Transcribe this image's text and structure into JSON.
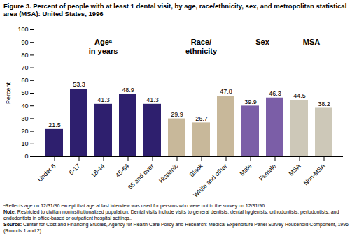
{
  "chart_data": {
    "type": "bar",
    "title": "Figure 3. Percent of people with at least 1 dental visit, by age, race/ethnicity, sex, and metropolitan statistical area (MSA): United States, 1996",
    "ylabel": "Percent",
    "categories": [
      "Under 6",
      "6-17",
      "18-44",
      "45-64",
      "65 and over",
      "Hispanic",
      "Black",
      "White and other",
      "Male",
      "Female",
      "MSA",
      "Non-MSA"
    ],
    "values": [
      21.5,
      53.3,
      41.3,
      48.9,
      41.3,
      29.9,
      26.7,
      47.8,
      39.9,
      46.3,
      44.5,
      38.2
    ],
    "colors": [
      "#2e1f6e",
      "#2e1f6e",
      "#2e1f6e",
      "#2e1f6e",
      "#2e1f6e",
      "#c8b89a",
      "#c8b89a",
      "#c8b89a",
      "#7b5ea7",
      "#7b5ea7",
      "#cdc8b8",
      "#cdc8b8"
    ],
    "ylim": [
      0,
      100
    ],
    "yticks": [
      0,
      10,
      20,
      30,
      40,
      50,
      60,
      70,
      80,
      90,
      100
    ],
    "grid": false,
    "data_labels": true,
    "annotations": [
      "Ageᵃ\nin years",
      "Race/\nethnicity",
      "Sex",
      "MSA"
    ],
    "caption": [
      "ᵃReflects age on 12/31/96 except that age at last interview was used for persons who were not in the survey on 12/31/96.",
      "Note: Restricted to civilian noninstitutionalized population.  Dental visits include visits to general dentists, dental hygienists, orthodontists, periodontists, and endodontists in office-based or outpatient hospital settings..",
      "Source: Center for Cost and Financing Studies, Agency for Health Care Policy and Research: Medical Expenditure Panel Survey Household Component, 1996 (Rounds 1 and 2)."
    ]
  }
}
